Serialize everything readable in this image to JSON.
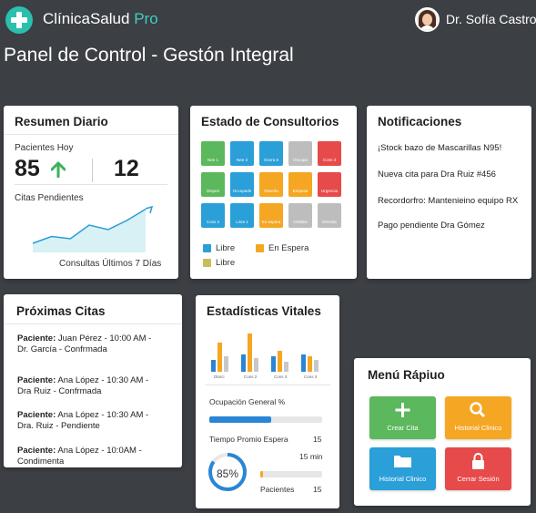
{
  "app": {
    "name": "ClínicaSalud",
    "edition": "Pro"
  },
  "user": {
    "name": "Dr. Sofía Castro"
  },
  "page": {
    "title": "Panel de Control - Gestón Integral"
  },
  "resumen": {
    "title": "Resumen Diario",
    "patients_label": "Pacientes Hoy",
    "patients_value": "85",
    "patients_secondary": "12",
    "pending_label": "Citas Pendientes",
    "chart_caption": "Consultas Últimos 7 Días"
  },
  "chart_data": {
    "type": "area",
    "title": "Consultas Últimos 7 Días",
    "values": [
      2,
      3.5,
      3,
      6,
      5,
      7,
      9.5
    ]
  },
  "consultorios": {
    "title": "Estado de Consultorios",
    "rooms": [
      {
        "label": "Nee 1",
        "color": "#5cb85c"
      },
      {
        "label": "Nee 3",
        "color": "#2a9fd8"
      },
      {
        "label": "Ocera 6",
        "color": "#2a9fd8"
      },
      {
        "label": "Oncopa",
        "color": "#bdbdbd"
      },
      {
        "label": "Cons 3",
        "color": "#e64a4a"
      },
      {
        "label": "Oispen",
        "color": "#5cb85c"
      },
      {
        "label": "Occupede",
        "color": "#2a9fd8"
      },
      {
        "label": "Deserla",
        "color": "#f5a623"
      },
      {
        "label": "Empesa",
        "color": "#f5a623"
      },
      {
        "label": "Urgencia",
        "color": "#e64a4a"
      },
      {
        "label": "Cons 2",
        "color": "#2a9fd8"
      },
      {
        "label": "Lires 1",
        "color": "#2a9fd8"
      },
      {
        "label": "En espera",
        "color": "#f5a623"
      },
      {
        "label": "Ombles",
        "color": "#bdbdbd"
      },
      {
        "label": "Dreesta",
        "color": "#bdbdbd"
      }
    ],
    "legend": [
      {
        "label": "Libre",
        "color": "#2a9fd8"
      },
      {
        "label": "En Espera",
        "color": "#f5a623"
      },
      {
        "label": "Libre",
        "color": "#c9bd5a"
      }
    ]
  },
  "notificaciones": {
    "title": "Notificaciones",
    "items": [
      "¡Stock bazo de Mascarillas N95!",
      "Nueva cita para Dra Ruiz #456",
      "Recordorfro: Mantenieino equipo RX",
      "Pago pendiente Dra Gómez"
    ]
  },
  "citas": {
    "title": "Próximas Citas",
    "items": [
      {
        "prefix": "Paciente:",
        "line1": " Juan Pérez - 10:00 AM -",
        "line2": "Dr. García - Confrmada"
      },
      {
        "prefix": "Paciente:",
        "line1": " Ana López - 10:30 AM -",
        "line2": "Dra Ruiz - Confrmada"
      },
      {
        "prefix": "Paciente:",
        "line1": " Ana López - 10:30 AM -",
        "line2": "Dra. Ruiz - Pendiente"
      },
      {
        "prefix": "Paciente:",
        "line1": " Ana López - 10:0AM -",
        "line2": "Condimenta"
      }
    ]
  },
  "stats": {
    "title": "Estadísticas Vitales",
    "bar_labels": [
      "Dlarci",
      "Cons 2",
      "Cons 3",
      "Cons 3"
    ],
    "bar_groups": [
      [
        0.3,
        0.75,
        0.4
      ],
      [
        0.45,
        1.0,
        0.35
      ],
      [
        0.4,
        0.55,
        0.25
      ],
      [
        0.45,
        0.4,
        0.3
      ]
    ],
    "bar_colors": [
      "#2a86d4",
      "#f5a623",
      "#c8c8c8"
    ],
    "occupancy_label": "Ocupación General %",
    "occupancy_pct": 0.55,
    "wait_label": "Tiempo Promio Espera",
    "wait_value": "15",
    "wait_min": "15 min",
    "gauge_value": "85%",
    "gauge_pct": 0.85,
    "patients_label": "Pacientes",
    "patients_value": "15",
    "patients_pct": 0.05
  },
  "menu": {
    "title": "Menú Rápiuo",
    "buttons": [
      {
        "label": "Crear Cita",
        "color": "#5cb85c",
        "icon": "plus-icon"
      },
      {
        "label": "Historial Clinico",
        "color": "#f5a623",
        "icon": "search-icon"
      },
      {
        "label": "Historial Clinico",
        "color": "#2a9fd8",
        "icon": "folder-icon"
      },
      {
        "label": "Cerrar Sesión",
        "color": "#e64a4a",
        "icon": "lock-icon"
      }
    ]
  }
}
